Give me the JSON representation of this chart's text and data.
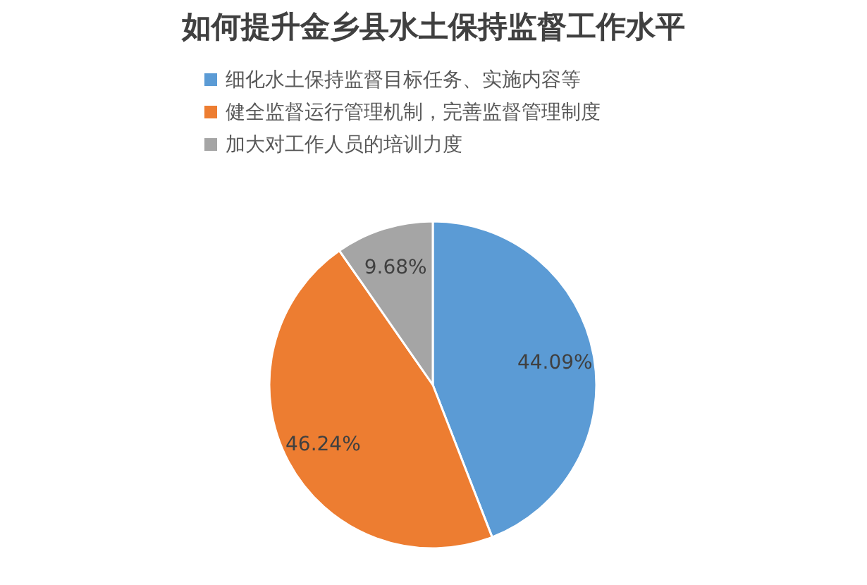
{
  "chart_data": {
    "type": "pie",
    "title": "如何提升金乡县水土保持监督工作水平",
    "categories": [
      "细化水土保持监督目标任务、实施内容等",
      "健全监督运行管理机制，完善监督管理制度",
      "加大对工作人员的培训力度"
    ],
    "values": [
      44.09,
      46.24,
      9.68
    ],
    "colors": [
      "#5b9bd5",
      "#ed7d31",
      "#a5a5a5"
    ],
    "value_labels": [
      "44.09%",
      "46.24%",
      "9.68%"
    ],
    "legend": "top"
  }
}
